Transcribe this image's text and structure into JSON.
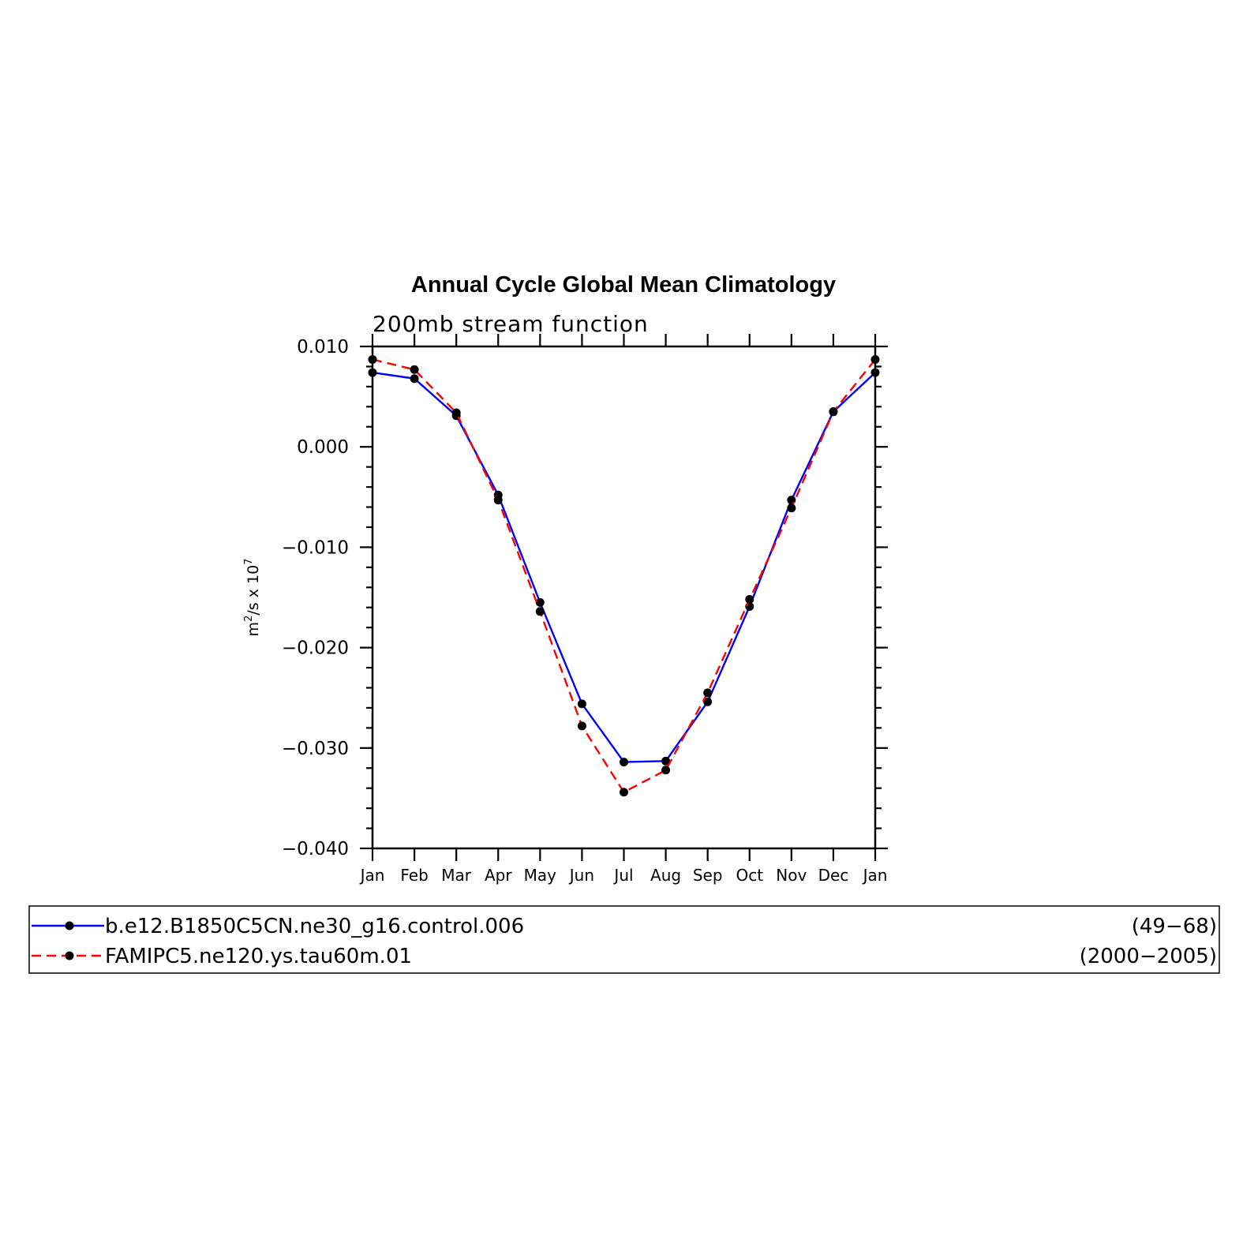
{
  "chart_data": {
    "type": "line",
    "title": "Annual Cycle Global Mean Climatology",
    "subtitle": "200mb stream function",
    "ylabel_base": "m",
    "ylabel_sup": "2",
    "ylabel_mid": "/s x 10",
    "ylabel_exp": "7",
    "ylim": [
      -0.04,
      0.01
    ],
    "yticks": [
      0.01,
      0.0,
      -0.01,
      -0.02,
      -0.03,
      -0.04
    ],
    "ytick_labels": [
      "0.010",
      "0.000",
      "−0.010",
      "−0.020",
      "−0.030",
      "−0.040"
    ],
    "categories": [
      "Jan",
      "Feb",
      "Mar",
      "Apr",
      "May",
      "Jun",
      "Jul",
      "Aug",
      "Sep",
      "Oct",
      "Nov",
      "Dec",
      "Jan"
    ],
    "grid": false,
    "legend_position": "bottom",
    "series": [
      {
        "name": "b.e12.B1850C5CN.ne30_g16.control.006",
        "years": "(49−68)",
        "color": "#0000ff",
        "dash": "solid",
        "marker": "circle",
        "values": [
          0.0074,
          0.0068,
          0.0031,
          -0.0048,
          -0.0155,
          -0.0256,
          -0.0314,
          -0.0313,
          -0.0254,
          -0.0159,
          -0.0053,
          0.0035,
          0.0074
        ]
      },
      {
        "name": "FAMIPC5.ne120.ys.tau60m.01",
        "years": "(2000−2005)",
        "color": "#ff0000",
        "dash": "dashed",
        "marker": "circle",
        "values": [
          0.0087,
          0.0077,
          0.0034,
          -0.0053,
          -0.0164,
          -0.0278,
          -0.0344,
          -0.0322,
          -0.0245,
          -0.0152,
          -0.0061,
          0.0035,
          0.0087
        ]
      }
    ]
  }
}
